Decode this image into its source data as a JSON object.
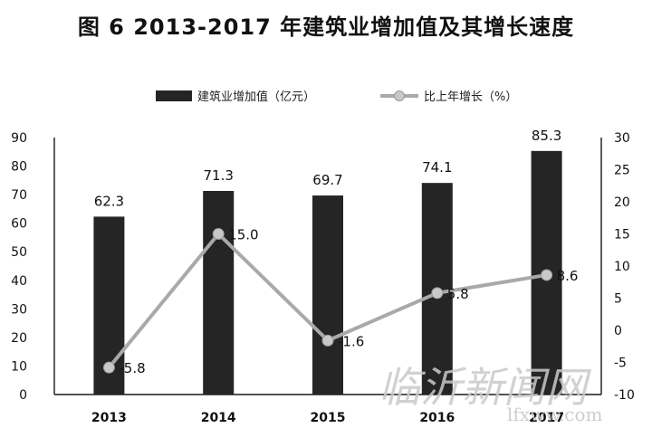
{
  "title": "图 6    2013-2017 年建筑业增加值及其增长速度",
  "colors": {
    "bar": "#252525",
    "line": "#a9a9a9",
    "marker": "#c8c8c8",
    "axis": "#1a1a1a"
  },
  "watermark": {
    "text": "临沂新闻网",
    "url": "lfxww.com"
  },
  "chart_data": {
    "type": "bar",
    "categories": [
      "2013",
      "2014",
      "2015",
      "2016",
      "2017"
    ],
    "series": [
      {
        "name": "建筑业增加值（亿元）",
        "kind": "bar",
        "axis": "left",
        "values": [
          62.3,
          71.3,
          69.7,
          74.1,
          85.3
        ],
        "labels": [
          "62.3",
          "71.3",
          "69.7",
          "74.1",
          "85.3"
        ]
      },
      {
        "name": "比上年增长（%）",
        "kind": "line",
        "axis": "right",
        "values": [
          -5.8,
          15.0,
          -1.6,
          5.8,
          8.6
        ],
        "labels": [
          "-5.8",
          "15.0",
          "-1.6",
          "5.8",
          "8.6"
        ]
      }
    ],
    "y_left": {
      "min": 0,
      "max": 90,
      "step": 10
    },
    "y_right": {
      "min": -10,
      "max": 30,
      "step": 5
    },
    "grid": false,
    "legend_position": "top-center"
  }
}
